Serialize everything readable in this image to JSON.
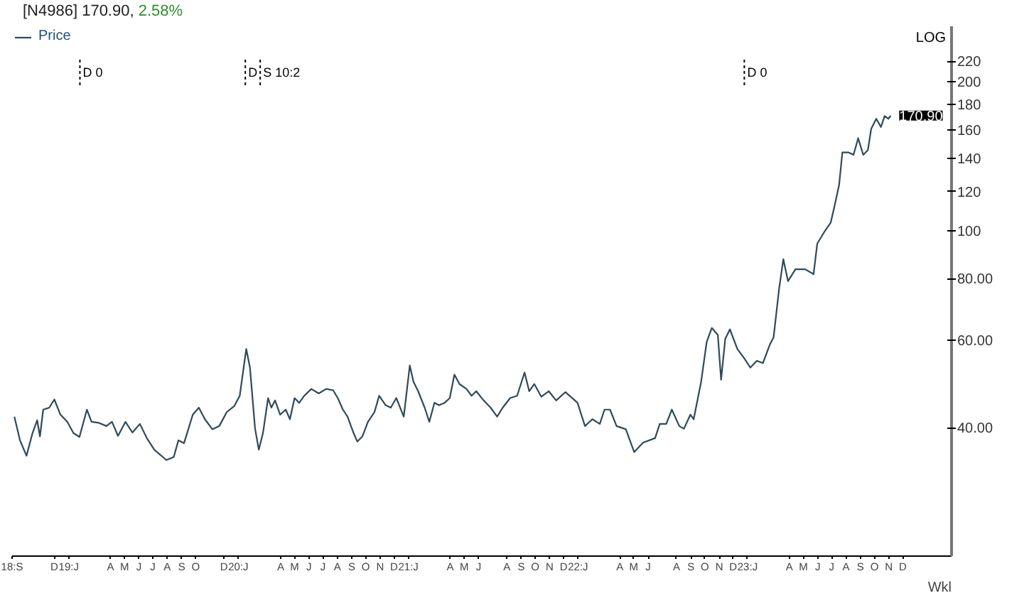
{
  "chart_data": {
    "type": "line",
    "title": "[N4986] 170.90,",
    "annotations": [
      "2.58%",
      "LOG",
      "Wkl",
      {
        "text": "170.90",
        "x": "2023-11-05",
        "y": 170.9
      }
    ],
    "ref_lines": [
      {
        "axis": "x",
        "value": "2019-01-25",
        "label": "D 0",
        "line_style": "dotted"
      },
      {
        "axis": "x",
        "value": "2020-01-16",
        "label": "D",
        "line_style": "dotted"
      },
      {
        "axis": "x",
        "value": "2020-02-17",
        "label": "S 10:2",
        "line_style": "dotted"
      },
      {
        "axis": "x",
        "value": "2022-12-25",
        "label": "D 0",
        "line_style": "dotted"
      }
    ],
    "series": [
      {
        "name": "Price",
        "color": "#2e4a5a",
        "x": [
          "2018-09-06",
          "2018-09-18",
          "2018-10-02",
          "2018-10-15",
          "2018-10-25",
          "2018-10-31",
          "2018-11-07",
          "2018-11-20",
          "2018-12-01",
          "2018-12-14",
          "2018-12-29",
          "2019-01-11",
          "2019-01-24",
          "2019-02-09",
          "2019-02-19",
          "2019-03-07",
          "2019-03-23",
          "2019-04-04",
          "2019-04-17",
          "2019-05-03",
          "2019-05-18",
          "2019-06-03",
          "2019-06-18",
          "2019-07-04",
          "2019-07-30",
          "2019-08-15",
          "2019-08-25",
          "2019-09-06",
          "2019-09-25",
          "2019-10-08",
          "2019-10-21",
          "2019-11-06",
          "2019-11-21",
          "2019-12-07",
          "2019-12-23",
          "2020-01-04",
          "2020-01-18",
          "2020-01-26",
          "2020-02-06",
          "2020-02-14",
          "2020-02-23",
          "2020-03-05",
          "2020-03-12",
          "2020-03-20",
          "2020-03-31",
          "2020-04-12",
          "2020-04-21",
          "2020-05-01",
          "2020-05-11",
          "2020-05-22",
          "2020-06-06",
          "2020-06-22",
          "2020-07-08",
          "2020-07-23",
          "2020-08-02",
          "2020-08-13",
          "2020-08-23",
          "2020-09-05",
          "2020-09-13",
          "2020-09-24",
          "2020-10-06",
          "2020-10-20",
          "2020-10-30",
          "2020-11-13",
          "2020-11-24",
          "2020-12-06",
          "2020-12-22",
          "2021-01-04",
          "2021-01-12",
          "2021-01-22",
          "2021-02-05",
          "2021-02-15",
          "2021-02-26",
          "2021-03-08",
          "2021-03-20",
          "2021-03-31",
          "2021-04-10",
          "2021-04-21",
          "2021-05-06",
          "2021-05-17",
          "2021-05-27",
          "2021-06-12",
          "2021-06-27",
          "2021-07-11",
          "2021-07-23",
          "2021-08-08",
          "2021-08-23",
          "2021-09-08",
          "2021-09-18",
          "2021-09-29",
          "2021-10-14",
          "2021-10-30",
          "2021-11-15",
          "2021-12-05",
          "2021-12-31",
          "2022-01-16",
          "2022-02-01",
          "2022-02-17",
          "2022-02-27",
          "2022-03-11",
          "2022-03-25",
          "2022-04-14",
          "2022-05-02",
          "2022-05-21",
          "2022-06-16",
          "2022-06-26",
          "2022-07-10",
          "2022-07-22",
          "2022-08-07",
          "2022-08-17",
          "2022-08-31",
          "2022-09-07",
          "2022-09-23",
          "2022-10-05",
          "2022-10-16",
          "2022-10-29",
          "2022-11-05",
          "2022-11-14",
          "2022-11-24",
          "2022-12-10",
          "2022-12-25",
          "2023-01-07",
          "2023-01-21",
          "2023-02-03",
          "2023-02-18",
          "2023-02-26",
          "2023-03-10",
          "2023-03-19",
          "2023-03-29",
          "2023-04-14",
          "2023-05-05",
          "2023-05-23",
          "2023-05-31",
          "2023-06-15",
          "2023-06-29",
          "2023-07-06",
          "2023-07-17",
          "2023-07-24",
          "2023-08-06",
          "2023-08-17",
          "2023-08-27",
          "2023-09-07",
          "2023-09-17",
          "2023-09-24",
          "2023-10-05",
          "2023-10-15",
          "2023-10-23",
          "2023-10-31",
          "2023-11-05"
        ],
        "values": [
          42.1,
          37.7,
          35.1,
          39.0,
          41.4,
          38.4,
          43.5,
          43.9,
          45.6,
          42.5,
          41.1,
          39.0,
          38.3,
          43.5,
          41.1,
          40.9,
          40.3,
          41.1,
          38.5,
          41.1,
          39.1,
          40.7,
          38.1,
          36.1,
          34.4,
          34.9,
          37.7,
          37.2,
          42.5,
          43.9,
          41.6,
          39.7,
          40.3,
          43.0,
          44.2,
          46.4,
          57.7,
          52.9,
          39.8,
          36.1,
          39.0,
          45.9,
          43.9,
          45.4,
          42.5,
          43.5,
          41.6,
          45.9,
          44.9,
          46.4,
          47.9,
          46.9,
          47.9,
          47.6,
          45.9,
          43.5,
          42.1,
          39.0,
          37.5,
          38.4,
          41.1,
          43.0,
          46.4,
          44.4,
          43.9,
          45.9,
          42.1,
          53.4,
          49.5,
          47.4,
          43.9,
          41.1,
          44.9,
          44.4,
          44.9,
          45.9,
          51.2,
          49.0,
          47.9,
          46.4,
          47.4,
          45.4,
          43.9,
          42.1,
          43.9,
          45.9,
          46.4,
          51.7,
          47.4,
          49.0,
          46.2,
          47.4,
          45.4,
          47.2,
          44.9,
          40.3,
          41.6,
          40.7,
          43.5,
          43.5,
          40.3,
          39.7,
          35.7,
          37.3,
          38.1,
          40.7,
          40.7,
          43.5,
          40.3,
          39.8,
          42.5,
          41.6,
          49.5,
          59.6,
          63.6,
          61.6,
          50.0,
          60.5,
          63.2,
          57.7,
          55.2,
          52.9,
          54.6,
          54.0,
          58.9,
          60.9,
          76.5,
          87.6,
          79.1,
          83.6,
          83.6,
          81.7,
          94.2,
          99.4,
          103.9,
          110.9,
          123.7,
          144.0,
          144.0,
          142.4,
          153.8,
          142.4,
          145.6,
          160.6,
          168.4,
          162.1,
          170.6,
          168.4,
          170.9
        ]
      }
    ],
    "xlim": [
      "2018-09-01",
      "2024-03-15"
    ],
    "xticks": [
      {
        "value": "2018-09-01",
        "label": "18:S"
      },
      {
        "value": "2018-12-01",
        "label": "D"
      },
      {
        "value": "2019-01-01",
        "label": "19:J"
      },
      {
        "value": "2019-04-01",
        "label": "A"
      },
      {
        "value": "2019-05-01",
        "label": "M"
      },
      {
        "value": "2019-06-01",
        "label": "J"
      },
      {
        "value": "2019-07-01",
        "label": "J"
      },
      {
        "value": "2019-08-01",
        "label": "A"
      },
      {
        "value": "2019-09-01",
        "label": "S"
      },
      {
        "value": "2019-10-01",
        "label": "O"
      },
      {
        "value": "2019-12-01",
        "label": "D"
      },
      {
        "value": "2020-01-01",
        "label": "20:J"
      },
      {
        "value": "2020-04-01",
        "label": "A"
      },
      {
        "value": "2020-05-01",
        "label": "M"
      },
      {
        "value": "2020-06-01",
        "label": "J"
      },
      {
        "value": "2020-07-01",
        "label": "J"
      },
      {
        "value": "2020-08-01",
        "label": "A"
      },
      {
        "value": "2020-09-01",
        "label": "S"
      },
      {
        "value": "2020-10-01",
        "label": "O"
      },
      {
        "value": "2020-11-01",
        "label": "N"
      },
      {
        "value": "2020-12-01",
        "label": "D"
      },
      {
        "value": "2021-01-01",
        "label": "21:J"
      },
      {
        "value": "2021-04-01",
        "label": "A"
      },
      {
        "value": "2021-05-01",
        "label": "M"
      },
      {
        "value": "2021-06-01",
        "label": "J"
      },
      {
        "value": "2021-08-01",
        "label": "A"
      },
      {
        "value": "2021-09-01",
        "label": "S"
      },
      {
        "value": "2021-10-01",
        "label": "O"
      },
      {
        "value": "2021-11-01",
        "label": "N"
      },
      {
        "value": "2021-12-01",
        "label": "D"
      },
      {
        "value": "2022-01-01",
        "label": "22:J"
      },
      {
        "value": "2022-04-01",
        "label": "A"
      },
      {
        "value": "2022-05-01",
        "label": "M"
      },
      {
        "value": "2022-06-01",
        "label": "J"
      },
      {
        "value": "2022-08-01",
        "label": "A"
      },
      {
        "value": "2022-09-01",
        "label": "S"
      },
      {
        "value": "2022-10-01",
        "label": "O"
      },
      {
        "value": "2022-11-01",
        "label": "N"
      },
      {
        "value": "2022-12-01",
        "label": "D"
      },
      {
        "value": "2023-01-01",
        "label": "23:J"
      },
      {
        "value": "2023-04-01",
        "label": "A"
      },
      {
        "value": "2023-05-01",
        "label": "M"
      },
      {
        "value": "2023-06-01",
        "label": "J"
      },
      {
        "value": "2023-07-01",
        "label": "J"
      },
      {
        "value": "2023-08-01",
        "label": "A"
      },
      {
        "value": "2023-09-01",
        "label": "S"
      },
      {
        "value": "2023-10-01",
        "label": "O"
      },
      {
        "value": "2023-11-01",
        "label": "N"
      },
      {
        "value": "2023-12-01",
        "label": "D"
      }
    ],
    "ylim": [
      22,
      259
    ],
    "log": true,
    "yticks": [
      {
        "value": 40,
        "label": "40.00"
      },
      {
        "value": 60,
        "label": "60.00"
      },
      {
        "value": 80,
        "label": "80.00"
      },
      100,
      120,
      140,
      160,
      180,
      200,
      220
    ],
    "legend": "top left",
    "grid": false,
    "marker": "none",
    "line_style": "solid"
  }
}
